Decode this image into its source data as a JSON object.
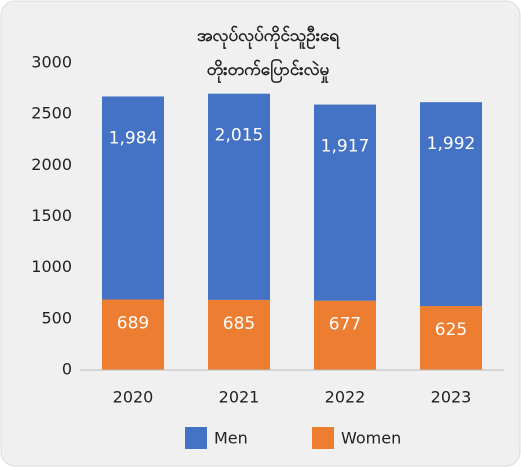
{
  "chart_data": {
    "type": "stacked_bar",
    "title": [
      "အလုပ်လုပ်ကိုင်သူဦးရေ",
      "တိုးတက်ပြောင်းလဲမှု"
    ],
    "categories": [
      "2020",
      "2021",
      "2022",
      "2023"
    ],
    "series": [
      {
        "name": "Women",
        "color": "#ed7d31",
        "values": [
          689,
          685,
          677,
          625
        ]
      },
      {
        "name": "Men",
        "color": "#4472c4",
        "values": [
          1984,
          2015,
          1917,
          1992
        ],
        "value_labels": [
          "1,984",
          "2,015",
          "1,917",
          "1,992"
        ]
      }
    ],
    "legend_order": [
      "Men",
      "Women"
    ],
    "ylim": [
      0,
      3000
    ],
    "yticks": [
      0,
      500,
      1000,
      1500,
      2000,
      2500,
      3000
    ],
    "grid": false,
    "legend": "bottom"
  }
}
